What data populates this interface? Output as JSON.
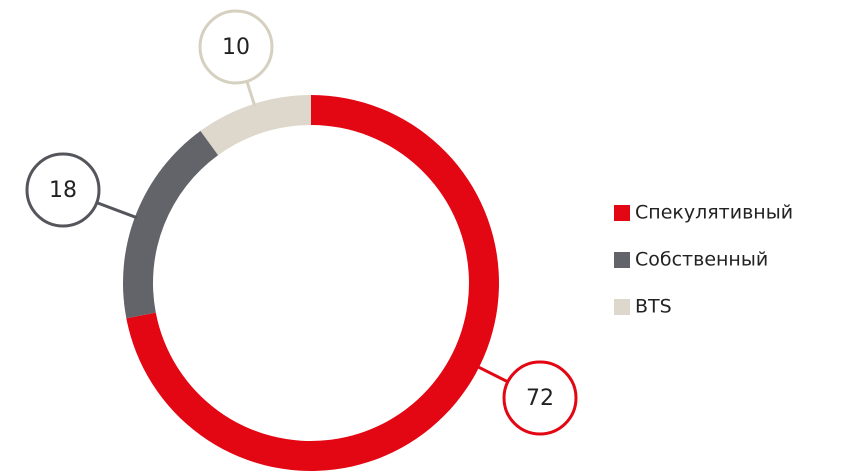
{
  "chart_data": {
    "type": "pie",
    "donut": true,
    "categories": [
      "Спекулятивный",
      "Собственный",
      "BTS"
    ],
    "values": [
      72,
      18,
      10
    ],
    "colors": [
      "#e30613",
      "#636469",
      "#ddd8cb"
    ],
    "label_stroke": [
      "#e30613",
      "#55565b",
      "#d6d0c0"
    ]
  }
}
